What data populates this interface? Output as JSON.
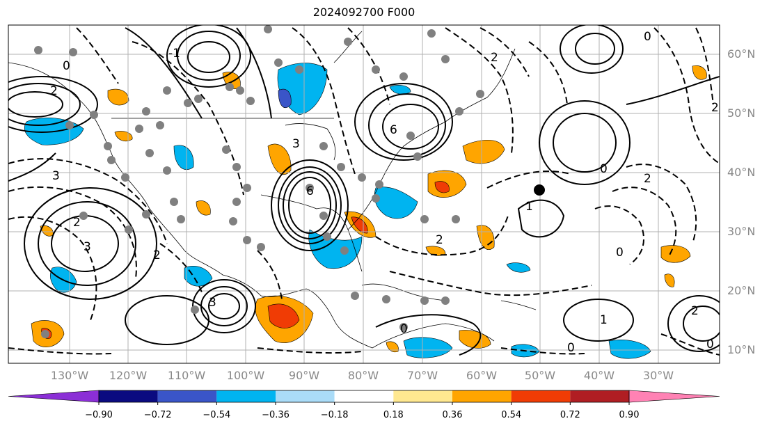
{
  "title": "2024092700 F000",
  "lat_labels": [
    "60°N",
    "50°N",
    "40°N",
    "30°N",
    "20°N",
    "10°N"
  ],
  "lon_labels": [
    "130°W",
    "120°W",
    "110°W",
    "100°W",
    "90°W",
    "80°W",
    "70°W",
    "60°W",
    "50°W",
    "40°W",
    "30°W"
  ],
  "colorbar": {
    "ticks": [
      "−0.90",
      "−0.72",
      "−0.54",
      "−0.36",
      "−0.18",
      "0.18",
      "0.36",
      "0.54",
      "0.72",
      "0.90"
    ],
    "colors": [
      "#8b2fd6",
      "#0a0a80",
      "#3a55c8",
      "#00b4f0",
      "#aadcf8",
      "#ffffff",
      "#ffe890",
      "#ffa500",
      "#f03c05",
      "#b01e23",
      "#ff82b4"
    ]
  },
  "contour_labels": [
    "0",
    "2",
    "3",
    "1",
    "6",
    "-1",
    "-2",
    "-3"
  ]
}
